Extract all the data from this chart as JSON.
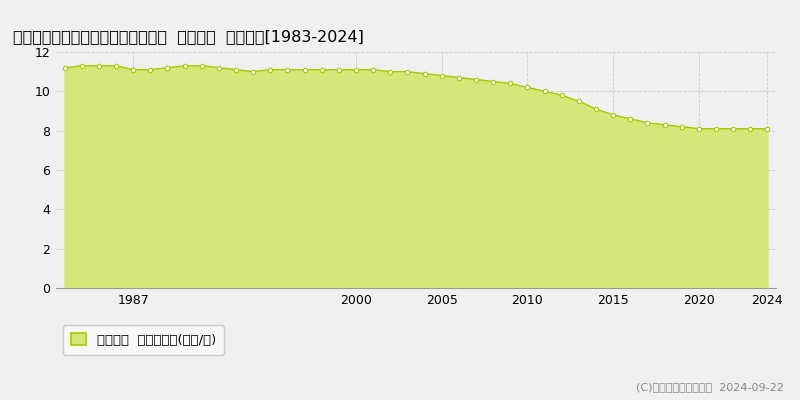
{
  "title": "宮崎県都城市下川東１丁目７号８番  基準地価  地価推移[1983-2024]",
  "years": [
    1983,
    1984,
    1985,
    1986,
    1987,
    1988,
    1989,
    1990,
    1991,
    1992,
    1993,
    1994,
    1995,
    1996,
    1997,
    1998,
    1999,
    2000,
    2001,
    2002,
    2003,
    2004,
    2005,
    2006,
    2007,
    2008,
    2009,
    2010,
    2011,
    2012,
    2013,
    2014,
    2015,
    2016,
    2017,
    2018,
    2019,
    2020,
    2021,
    2022,
    2023,
    2024
  ],
  "values": [
    11.2,
    11.3,
    11.3,
    11.3,
    11.1,
    11.1,
    11.2,
    11.3,
    11.3,
    11.2,
    11.1,
    11.0,
    11.1,
    11.1,
    11.1,
    11.1,
    11.1,
    11.1,
    11.1,
    11.0,
    11.0,
    10.9,
    10.8,
    10.7,
    10.6,
    10.5,
    10.4,
    10.2,
    10.0,
    9.8,
    9.5,
    9.1,
    8.8,
    8.6,
    8.4,
    8.3,
    8.2,
    8.1,
    8.1,
    8.1,
    8.1,
    8.1
  ],
  "line_color": "#a8c800",
  "fill_color": "#d4e87a",
  "marker_facecolor": "#ffffff",
  "marker_edgecolor": "#a8c800",
  "background_color": "#f0f0f0",
  "plot_bg_color": "#f0f0f0",
  "grid_color_h": "#cccccc",
  "grid_color_v": "#cccccc",
  "ylim": [
    0,
    12
  ],
  "yticks": [
    0,
    2,
    4,
    6,
    8,
    10,
    12
  ],
  "xtick_positions": [
    1987,
    2000,
    2005,
    2010,
    2015,
    2020,
    2024
  ],
  "xlim_left": 1982.5,
  "xlim_right": 2024.5,
  "legend_label": "基準地価  平均坪単価(万円/坪)",
  "copyright_text": "(C)土地価格ドットコム  2024-09-22",
  "title_fontsize": 11.5,
  "tick_fontsize": 9,
  "legend_fontsize": 9.5,
  "copyright_fontsize": 8
}
